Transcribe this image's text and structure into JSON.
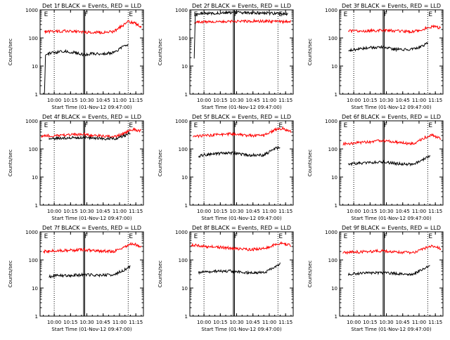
{
  "figure": {
    "background": "#ffffff",
    "colors": {
      "events": "#000000",
      "lld": "#ff0000",
      "axes": "#000000"
    }
  },
  "chart_data": [
    {
      "type": "line",
      "title": "Det 1f BLACK = Events, RED = LLD",
      "xlabel": "Start Time (01-Nov-12 09:47:00)",
      "ylabel": "Counts/sec",
      "yscale": "log",
      "ylim": [
        1,
        1000
      ],
      "yticks": [
        1,
        10,
        100,
        1000
      ],
      "yticklabels": [
        "1",
        "10",
        "100",
        "1000"
      ],
      "xlim": [
        "09:47",
        "11:22"
      ],
      "xticks": [
        "10:00",
        "10:15",
        "10:30",
        "10:45",
        "11:00",
        "11:15"
      ],
      "xticklabels": [
        "10:00",
        "10:15",
        "10:30",
        "10:45",
        "11:00",
        "11:15"
      ],
      "markers": [
        {
          "label": "E",
          "time": "09:50"
        },
        {
          "label": "F",
          "time": "10:27"
        },
        {
          "label": "E",
          "time": "11:08"
        }
      ],
      "dotted_lines": [
        "10:00",
        "11:08"
      ],
      "solid_lines": [
        "10:27",
        "10:28"
      ],
      "series": [
        {
          "color": "#ff0000",
          "x": [
            "09:51",
            "10:00",
            "10:10",
            "10:20",
            "10:27",
            "10:35",
            "10:45",
            "10:55",
            "11:02",
            "11:08",
            "11:14",
            "11:20"
          ],
          "y": [
            165,
            170,
            175,
            170,
            160,
            160,
            155,
            170,
            260,
            380,
            330,
            250
          ]
        },
        {
          "color": "#000000",
          "x": [
            "09:51",
            "09:52",
            "09:55",
            "10:00",
            "10:10",
            "10:20",
            "10:27",
            "10:35",
            "10:45",
            "10:55",
            "11:02",
            "11:08"
          ],
          "y": [
            1,
            24,
            28,
            30,
            33,
            30,
            25,
            28,
            27,
            30,
            45,
            60
          ]
        }
      ]
    },
    {
      "type": "line",
      "title": "Det 2f BLACK = Events, RED = LLD",
      "xlabel": "Start Time (01-Nov-12 09:47:00)",
      "ylabel": "Counts/sec",
      "yscale": "log",
      "ylim": [
        1,
        1000
      ],
      "yticks": [
        1,
        10,
        100,
        1000
      ],
      "yticklabels": [
        "1",
        "10",
        "100",
        "1000"
      ],
      "xlim": [
        "09:47",
        "11:22"
      ],
      "xticks": [
        "10:00",
        "10:15",
        "10:30",
        "10:45",
        "11:00",
        "11:15"
      ],
      "xticklabels": [
        "10:00",
        "10:15",
        "10:30",
        "10:45",
        "11:00",
        "11:15"
      ],
      "markers": [
        {
          "label": "E",
          "time": "09:50"
        },
        {
          "label": "F",
          "time": "10:27"
        },
        {
          "label": "E",
          "time": "11:08"
        }
      ],
      "dotted_lines": [
        "10:00",
        "11:08"
      ],
      "solid_lines": [
        "10:27",
        "10:28"
      ],
      "series": [
        {
          "color": "#ff0000",
          "x": [
            "09:51",
            "10:00",
            "10:15",
            "10:30",
            "10:45",
            "11:00",
            "11:10",
            "11:20"
          ],
          "y": [
            350,
            370,
            380,
            390,
            400,
            390,
            380,
            370
          ]
        },
        {
          "color": "#000000",
          "x": [
            "09:51",
            "09:52",
            "09:53",
            "10:00",
            "10:15",
            "10:30",
            "10:45",
            "11:00",
            "11:10",
            "11:17"
          ],
          "y": [
            20,
            600,
            700,
            750,
            780,
            800,
            790,
            760,
            720,
            700
          ]
        }
      ]
    },
    {
      "type": "line",
      "title": "Det 3f BLACK = Events, RED = LLD",
      "xlabel": "Start Time (01-Nov-12 09:47:00)",
      "ylabel": "Counts/sec",
      "yscale": "log",
      "ylim": [
        1,
        1000
      ],
      "yticks": [
        1,
        10,
        100,
        1000
      ],
      "yticklabels": [
        "1",
        "10",
        "100",
        "1000"
      ],
      "xlim": [
        "09:47",
        "11:22"
      ],
      "xticks": [
        "10:00",
        "10:15",
        "10:30",
        "10:45",
        "11:00",
        "11:15"
      ],
      "xticklabels": [
        "10:00",
        "10:15",
        "10:30",
        "10:45",
        "11:00",
        "11:15"
      ],
      "markers": [
        {
          "label": "E",
          "time": "09:50"
        },
        {
          "label": "F",
          "time": "10:27"
        },
        {
          "label": "E",
          "time": "11:08"
        }
      ],
      "dotted_lines": [
        "10:00",
        "11:08"
      ],
      "solid_lines": [
        "10:27",
        "10:28"
      ],
      "series": [
        {
          "color": "#ff0000",
          "x": [
            "09:55",
            "10:05",
            "10:15",
            "10:27",
            "10:35",
            "10:45",
            "10:55",
            "11:02",
            "11:08",
            "11:14",
            "11:20"
          ],
          "y": [
            180,
            175,
            180,
            190,
            180,
            170,
            170,
            190,
            240,
            250,
            220
          ]
        },
        {
          "color": "#000000",
          "x": [
            "09:55",
            "10:05",
            "10:15",
            "10:27",
            "10:35",
            "10:45",
            "10:55",
            "11:02",
            "11:08"
          ],
          "y": [
            35,
            40,
            45,
            48,
            40,
            38,
            40,
            50,
            65
          ]
        }
      ]
    },
    {
      "type": "line",
      "title": "Det 4f BLACK = Events, RED = LLD",
      "xlabel": "Start Time (01-Nov-12 09:47:00)",
      "ylabel": "Counts/sec",
      "yscale": "log",
      "ylim": [
        1,
        1000
      ],
      "yticks": [
        1,
        10,
        100,
        1000
      ],
      "yticklabels": [
        "1",
        "10",
        "100",
        "1000"
      ],
      "xlim": [
        "09:47",
        "11:22"
      ],
      "xticks": [
        "10:00",
        "10:15",
        "10:30",
        "10:45",
        "11:00",
        "11:15"
      ],
      "xticklabels": [
        "10:00",
        "10:15",
        "10:30",
        "10:45",
        "11:00",
        "11:15"
      ],
      "markers": [
        {
          "label": "E",
          "time": "09:50"
        },
        {
          "label": "F",
          "time": "10:27"
        },
        {
          "label": "E",
          "time": "11:08"
        }
      ],
      "dotted_lines": [
        "10:00",
        "11:08"
      ],
      "solid_lines": [
        "10:27",
        "10:28"
      ],
      "series": [
        {
          "color": "#ff0000",
          "x": [
            "09:48",
            "10:00",
            "10:15",
            "10:27",
            "10:40",
            "10:55",
            "11:05",
            "11:12",
            "11:20"
          ],
          "y": [
            290,
            300,
            320,
            330,
            290,
            270,
            360,
            500,
            430
          ]
        },
        {
          "color": "#000000",
          "x": [
            "09:55",
            "10:00",
            "10:15",
            "10:27",
            "10:40",
            "10:55",
            "11:05",
            "11:10"
          ],
          "y": [
            230,
            240,
            250,
            260,
            240,
            230,
            300,
            380
          ]
        }
      ]
    },
    {
      "type": "line",
      "title": "Det 5f BLACK = Events, RED = LLD",
      "xlabel": "Start Time (01-Nov-12 09:47:00)",
      "ylabel": "Counts/sec",
      "yscale": "log",
      "ylim": [
        1,
        1000
      ],
      "yticks": [
        1,
        10,
        100,
        1000
      ],
      "yticklabels": [
        "1",
        "10",
        "100",
        "1000"
      ],
      "xlim": [
        "09:47",
        "11:22"
      ],
      "xticks": [
        "10:00",
        "10:15",
        "10:30",
        "10:45",
        "11:00",
        "11:15"
      ],
      "xticklabels": [
        "10:00",
        "10:15",
        "10:30",
        "10:45",
        "11:00",
        "11:15"
      ],
      "markers": [
        {
          "label": "E",
          "time": "09:50"
        },
        {
          "label": "F",
          "time": "10:27"
        },
        {
          "label": "E",
          "time": "11:08"
        }
      ],
      "dotted_lines": [
        "10:00",
        "11:08"
      ],
      "solid_lines": [
        "10:27",
        "10:28"
      ],
      "series": [
        {
          "color": "#ff0000",
          "x": [
            "09:50",
            "10:00",
            "10:15",
            "10:27",
            "10:40",
            "10:55",
            "11:05",
            "11:12",
            "11:20"
          ],
          "y": [
            280,
            290,
            330,
            340,
            300,
            300,
            480,
            550,
            420
          ]
        },
        {
          "color": "#000000",
          "x": [
            "09:55",
            "10:00",
            "10:15",
            "10:27",
            "10:40",
            "10:55",
            "11:05",
            "11:10"
          ],
          "y": [
            55,
            60,
            70,
            70,
            60,
            60,
            100,
            120
          ]
        }
      ]
    },
    {
      "type": "line",
      "title": "Det 6f BLACK = Events, RED = LLD",
      "xlabel": "Start Time (01-Nov-12 09:47:00)",
      "ylabel": "Counts/sec",
      "yscale": "log",
      "ylim": [
        1,
        1000
      ],
      "yticks": [
        1,
        10,
        100,
        1000
      ],
      "yticklabels": [
        "1",
        "10",
        "100",
        "1000"
      ],
      "xlim": [
        "09:47",
        "11:22"
      ],
      "xticks": [
        "10:00",
        "10:15",
        "10:30",
        "10:45",
        "11:00",
        "11:15"
      ],
      "xticklabels": [
        "10:00",
        "10:15",
        "10:30",
        "10:45",
        "11:00",
        "11:15"
      ],
      "markers": [
        {
          "label": "E",
          "time": "09:50"
        },
        {
          "label": "F",
          "time": "10:27"
        },
        {
          "label": "E",
          "time": "11:08"
        }
      ],
      "dotted_lines": [
        "10:00",
        "11:08"
      ],
      "solid_lines": [
        "10:27",
        "10:28"
      ],
      "series": [
        {
          "color": "#ff0000",
          "x": [
            "09:50",
            "10:00",
            "10:15",
            "10:27",
            "10:40",
            "10:55",
            "11:05",
            "11:12",
            "11:20"
          ],
          "y": [
            150,
            160,
            180,
            200,
            170,
            150,
            250,
            310,
            230
          ]
        },
        {
          "color": "#000000",
          "x": [
            "09:55",
            "10:00",
            "10:15",
            "10:27",
            "10:40",
            "10:55",
            "11:05",
            "11:10"
          ],
          "y": [
            28,
            30,
            33,
            35,
            30,
            28,
            45,
            55
          ]
        }
      ]
    },
    {
      "type": "line",
      "title": "Det 7f BLACK = Events, RED = LLD",
      "xlabel": "Start Time (01-Nov-12 09:47:00)",
      "ylabel": "Counts/sec",
      "yscale": "log",
      "ylim": [
        1,
        1000
      ],
      "yticks": [
        1,
        10,
        100,
        1000
      ],
      "yticklabels": [
        "1",
        "10",
        "100",
        "1000"
      ],
      "xlim": [
        "09:47",
        "11:22"
      ],
      "xticks": [
        "10:00",
        "10:15",
        "10:30",
        "10:45",
        "11:00",
        "11:15"
      ],
      "xticklabels": [
        "10:00",
        "10:15",
        "10:30",
        "10:45",
        "11:00",
        "11:15"
      ],
      "markers": [
        {
          "label": "E",
          "time": "09:50"
        },
        {
          "label": "F",
          "time": "10:27"
        },
        {
          "label": "E",
          "time": "11:08"
        }
      ],
      "dotted_lines": [
        "10:00",
        "11:08"
      ],
      "solid_lines": [
        "10:27",
        "10:28"
      ],
      "series": [
        {
          "color": "#ff0000",
          "x": [
            "09:50",
            "10:00",
            "10:15",
            "10:27",
            "10:40",
            "10:55",
            "11:05",
            "11:12",
            "11:20"
          ],
          "y": [
            200,
            210,
            220,
            230,
            210,
            200,
            300,
            380,
            300
          ]
        },
        {
          "color": "#000000",
          "x": [
            "09:55",
            "10:00",
            "10:15",
            "10:27",
            "10:40",
            "10:55",
            "11:05",
            "11:10"
          ],
          "y": [
            25,
            27,
            28,
            30,
            28,
            30,
            45,
            60
          ]
        }
      ]
    },
    {
      "type": "line",
      "title": "Det 8f BLACK = Events, RED = LLD",
      "xlabel": "Start Time (01-Nov-12 09:47:00)",
      "ylabel": "Counts/sec",
      "yscale": "log",
      "ylim": [
        1,
        1000
      ],
      "yticks": [
        1,
        10,
        100,
        1000
      ],
      "yticklabels": [
        "1",
        "10",
        "100",
        "1000"
      ],
      "xlim": [
        "09:47",
        "11:22"
      ],
      "xticks": [
        "10:00",
        "10:15",
        "10:30",
        "10:45",
        "11:00",
        "11:15"
      ],
      "xticklabels": [
        "10:00",
        "10:15",
        "10:30",
        "10:45",
        "11:00",
        "11:15"
      ],
      "markers": [
        {
          "label": "E",
          "time": "09:50"
        },
        {
          "label": "F",
          "time": "10:27"
        },
        {
          "label": "E",
          "time": "11:08"
        }
      ],
      "dotted_lines": [
        "10:00",
        "11:08"
      ],
      "solid_lines": [
        "10:27",
        "10:28"
      ],
      "series": [
        {
          "color": "#ff0000",
          "x": [
            "09:48",
            "10:00",
            "10:15",
            "10:27",
            "10:40",
            "10:55",
            "11:05",
            "11:12",
            "11:20"
          ],
          "y": [
            350,
            300,
            280,
            260,
            230,
            250,
            350,
            400,
            320
          ]
        },
        {
          "color": "#000000",
          "x": [
            "09:55",
            "10:00",
            "10:15",
            "10:27",
            "10:40",
            "10:55",
            "11:05",
            "11:10"
          ],
          "y": [
            35,
            38,
            40,
            40,
            35,
            35,
            55,
            75
          ]
        }
      ]
    },
    {
      "type": "line",
      "title": "Det 9f BLACK = Events, RED = LLD",
      "xlabel": "Start Time (01-Nov-12 09:47:00)",
      "ylabel": "Counts/sec",
      "yscale": "log",
      "ylim": [
        1,
        1000
      ],
      "yticks": [
        1,
        10,
        100,
        1000
      ],
      "yticklabels": [
        "1",
        "10",
        "100",
        "1000"
      ],
      "xlim": [
        "09:47",
        "11:22"
      ],
      "xticks": [
        "10:00",
        "10:15",
        "10:30",
        "10:45",
        "11:00",
        "11:15"
      ],
      "xticklabels": [
        "10:00",
        "10:15",
        "10:30",
        "10:45",
        "11:00",
        "11:15"
      ],
      "markers": [
        {
          "label": "E",
          "time": "09:50"
        },
        {
          "label": "F",
          "time": "10:27"
        },
        {
          "label": "E",
          "time": "11:08"
        }
      ],
      "dotted_lines": [
        "10:00",
        "11:08"
      ],
      "solid_lines": [
        "10:27",
        "10:28"
      ],
      "series": [
        {
          "color": "#ff0000",
          "x": [
            "09:50",
            "10:00",
            "10:15",
            "10:27",
            "10:40",
            "10:55",
            "11:05",
            "11:12",
            "11:20"
          ],
          "y": [
            180,
            190,
            200,
            210,
            190,
            180,
            260,
            320,
            250
          ]
        },
        {
          "color": "#000000",
          "x": [
            "09:55",
            "10:00",
            "10:15",
            "10:27",
            "10:40",
            "10:55",
            "11:05",
            "11:10"
          ],
          "y": [
            30,
            32,
            35,
            35,
            32,
            32,
            50,
            65
          ]
        }
      ]
    }
  ]
}
